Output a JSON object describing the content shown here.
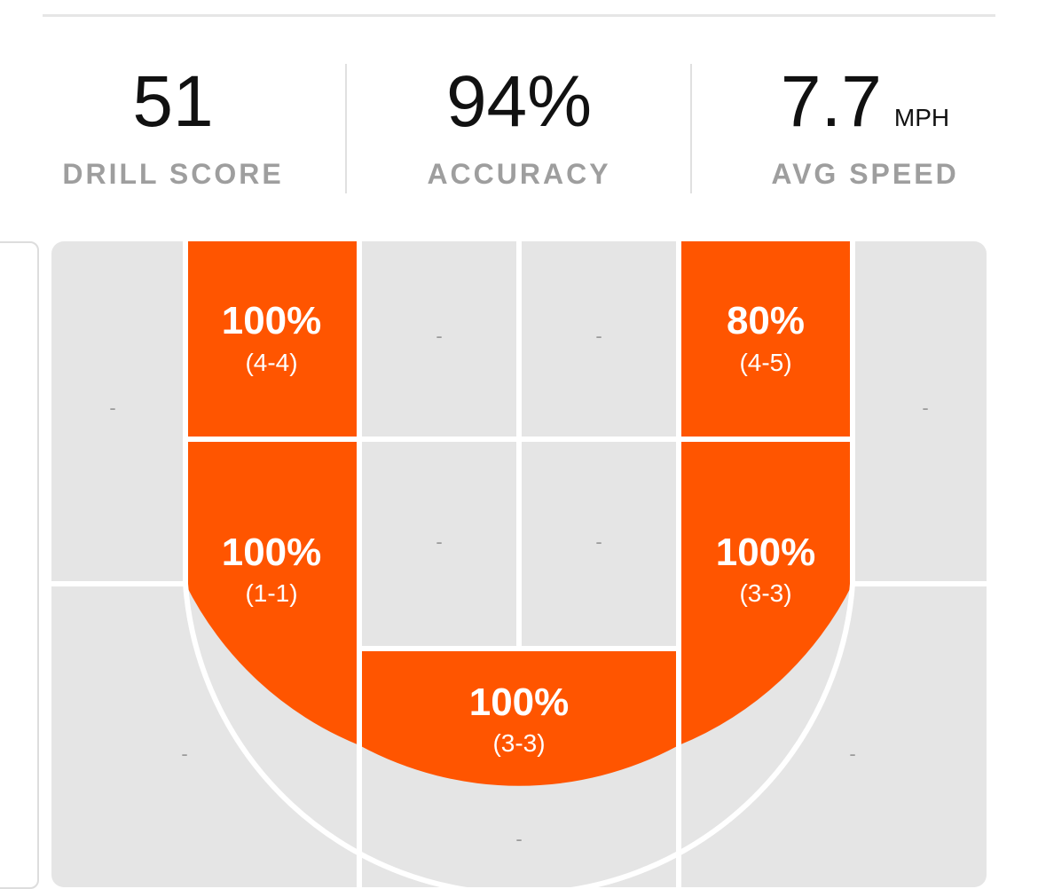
{
  "stats": {
    "drill_score": {
      "value": "51",
      "label": "DRILL SCORE"
    },
    "accuracy": {
      "value": "94%",
      "label": "ACCURACY"
    },
    "avg_speed": {
      "value": "7.7",
      "unit": "MPH",
      "label": "AVG SPEED"
    }
  },
  "colors": {
    "hot_zone": "#ff5500",
    "empty_zone": "#e5e5e5",
    "zone_lines": "#ffffff",
    "label_gray": "#9e9e9e"
  },
  "zones": {
    "left_corner_top": {
      "pct": "-",
      "made": ""
    },
    "left_elbow_top": {
      "pct": "100%",
      "made": "(4-4)"
    },
    "mid_left_top": {
      "pct": "-",
      "made": ""
    },
    "mid_right_top": {
      "pct": "-",
      "made": ""
    },
    "right_elbow_top": {
      "pct": "80%",
      "made": "(4-5)"
    },
    "right_corner_top": {
      "pct": "-",
      "made": ""
    },
    "left_block": {
      "pct": "100%",
      "made": "(1-1)"
    },
    "paint_left": {
      "pct": "-",
      "made": ""
    },
    "paint_right": {
      "pct": "-",
      "made": ""
    },
    "right_block": {
      "pct": "100%",
      "made": "(3-3)"
    },
    "bottom_center": {
      "pct": "100%",
      "made": "(3-3)"
    },
    "left_wing": {
      "pct": "-",
      "made": ""
    },
    "right_wing": {
      "pct": "-",
      "made": ""
    },
    "top_key": {
      "pct": "-",
      "made": ""
    }
  }
}
